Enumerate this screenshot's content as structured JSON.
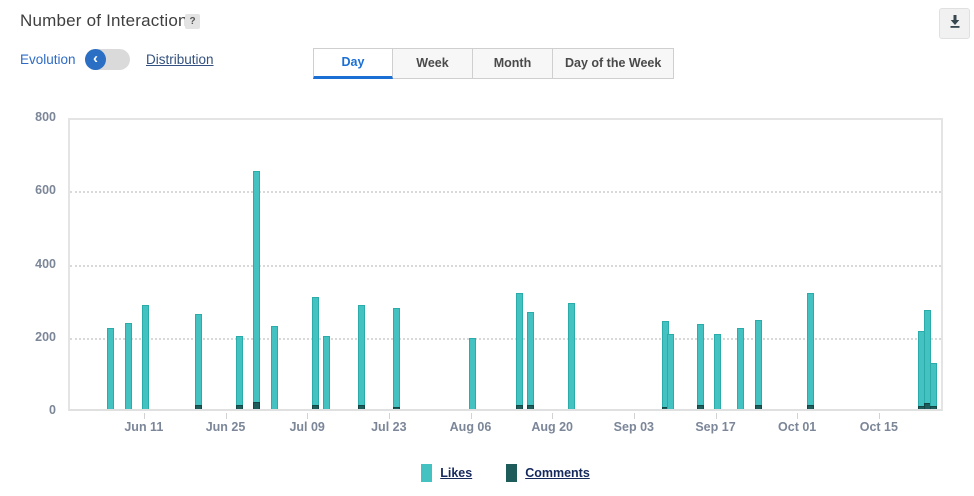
{
  "header": {
    "title": "Number of Interactions",
    "help": "?"
  },
  "view_toggle": {
    "left_label": "Evolution",
    "right_label": "Distribution",
    "selected": "Evolution",
    "knob_glyph": "‹"
  },
  "tabs": {
    "items": [
      {
        "label": "Day",
        "active": true
      },
      {
        "label": "Week",
        "active": false
      },
      {
        "label": "Month",
        "active": false
      },
      {
        "label": "Day of the Week",
        "active": false
      }
    ]
  },
  "colors": {
    "likes": "#44c1c1",
    "comments": "#1d5c5b",
    "accent_blue": "#1a6fd4",
    "axis_text": "#7b8698"
  },
  "chart_data": {
    "type": "bar",
    "title": "Number of Interactions",
    "xlabel": "",
    "ylabel": "",
    "ylim": [
      0,
      800
    ],
    "y_ticks": [
      0,
      200,
      400,
      600,
      800
    ],
    "x_domain": [
      "May 29",
      "Oct 26"
    ],
    "x_ticks": [
      "Jun 11",
      "Jun 25",
      "Jul 09",
      "Jul 23",
      "Aug 06",
      "Aug 20",
      "Sep 03",
      "Sep 17",
      "Oct 01",
      "Oct 15"
    ],
    "grid": "horizontal dotted at 200/400/600",
    "legend_position": "bottom",
    "x": [
      "Jun 05",
      "Jun 08",
      "Jun 11",
      "Jun 20",
      "Jun 27",
      "Jun 30",
      "Jul 03",
      "Jul 10",
      "Jul 12",
      "Jul 18",
      "Jul 24",
      "Aug 06",
      "Aug 14",
      "Aug 16",
      "Aug 23",
      "Sep 08",
      "Sep 09",
      "Sep 14",
      "Sep 17",
      "Sep 21",
      "Sep 24",
      "Oct 03",
      "Oct 22",
      "Oct 23",
      "Oct 24"
    ],
    "series": [
      {
        "name": "Likes",
        "color": "#44c1c1",
        "values": [
          220,
          235,
          285,
          260,
          200,
          650,
          228,
          305,
          200,
          285,
          275,
          195,
          318,
          265,
          290,
          240,
          205,
          232,
          205,
          220,
          243,
          318,
          213,
          270,
          127
        ]
      },
      {
        "name": "Comments",
        "color": "#1d5c5b",
        "values": [
          0,
          0,
          0,
          12,
          10,
          18,
          0,
          12,
          0,
          12,
          6,
          0,
          12,
          10,
          0,
          6,
          0,
          10,
          0,
          0,
          10,
          12,
          8,
          16,
          8
        ]
      }
    ]
  },
  "legend": {
    "items": [
      {
        "label": "Likes",
        "color": "#44c1c1"
      },
      {
        "label": "Comments",
        "color": "#1d5c5b"
      }
    ]
  }
}
